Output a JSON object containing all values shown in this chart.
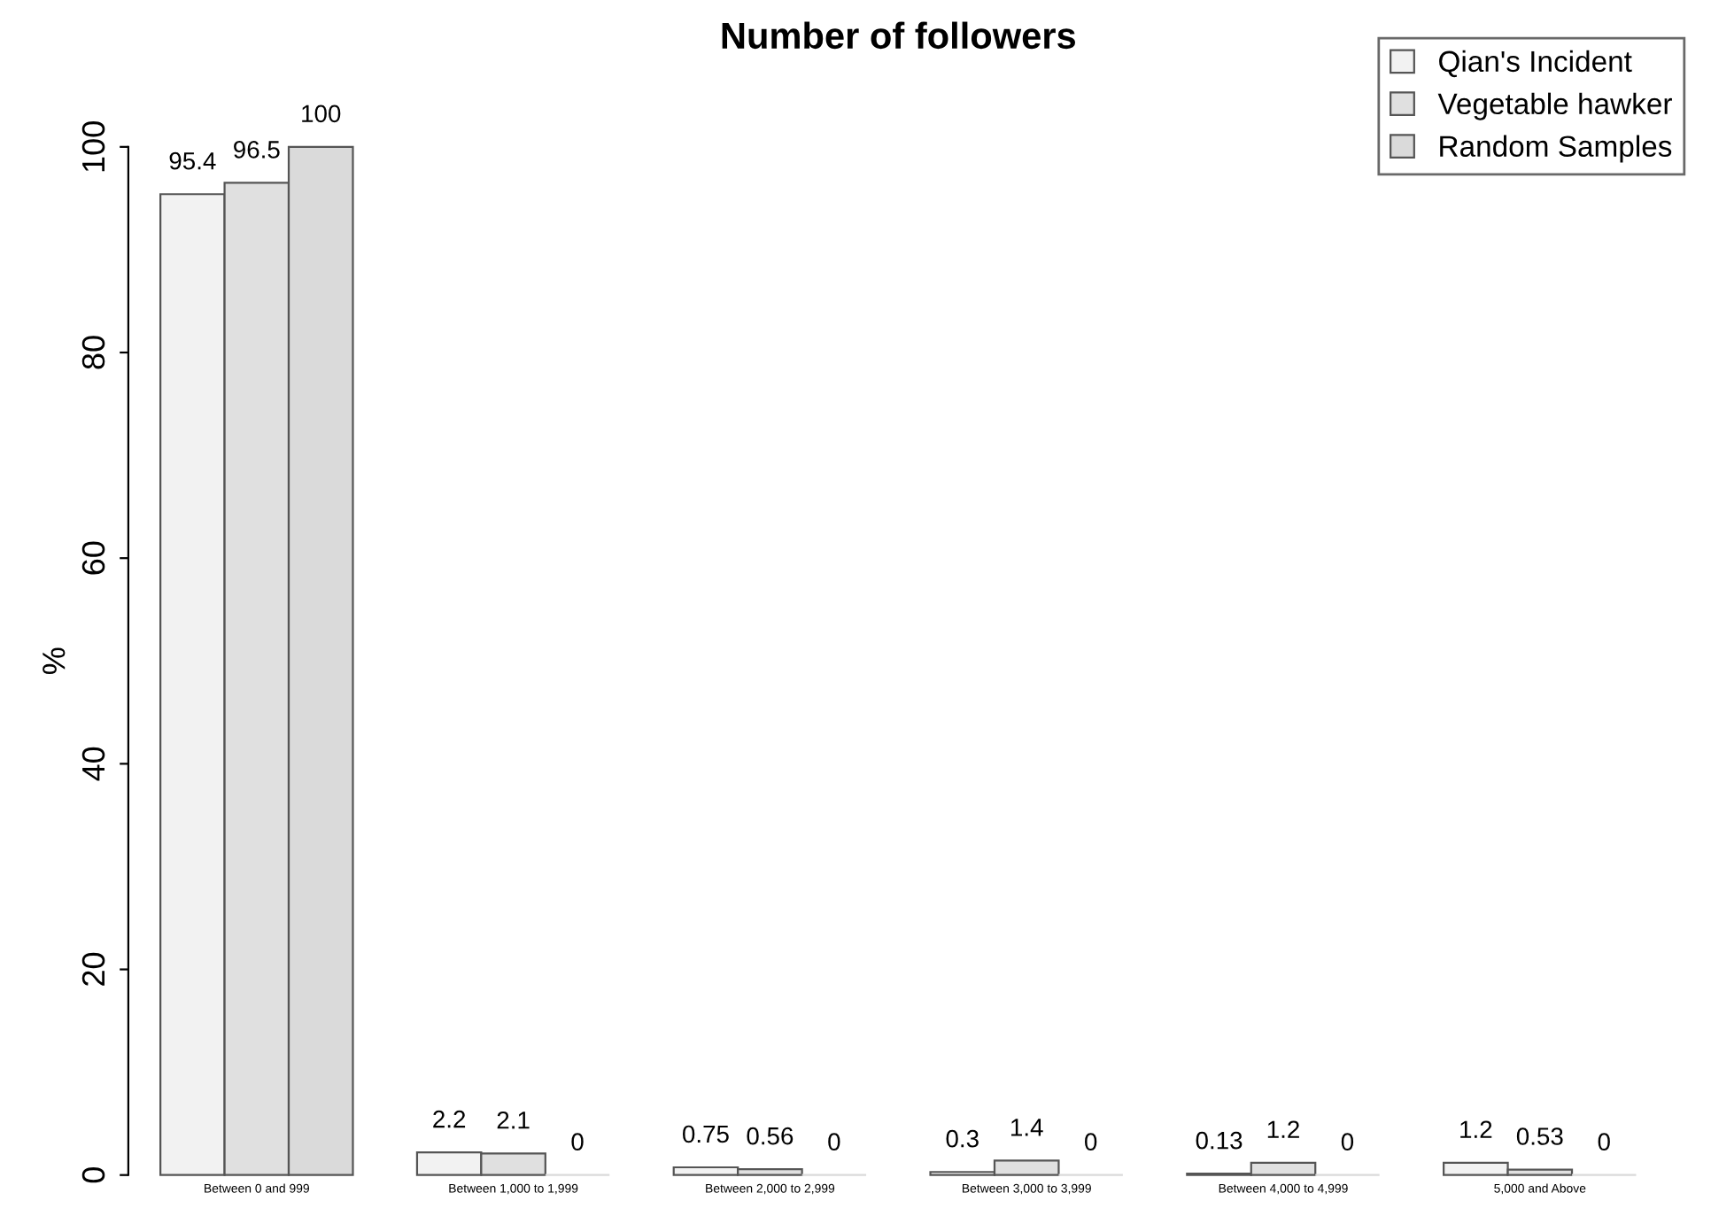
{
  "chart_data": {
    "type": "bar",
    "title": "Number of followers",
    "ylabel": "%",
    "categories": [
      "Between 0 and 999",
      "Between 1,000 to 1,999",
      "Between 2,000 to 2,999",
      "Between 3,000 to 3,999",
      "Between 4,000 to 4,999",
      "5,000 and Above"
    ],
    "series": [
      {
        "name": "Qian's Incident",
        "color": "#f2f2f2",
        "values": [
          95.4,
          2.2,
          0.75,
          0.3,
          0.13,
          1.2
        ]
      },
      {
        "name": "Vegetable hawker",
        "color": "#e0e0e0",
        "values": [
          96.5,
          2.1,
          0.56,
          1.4,
          1.2,
          0.53
        ]
      },
      {
        "name": "Random Samples",
        "color": "#dadada",
        "values": [
          100,
          0,
          0,
          0,
          0,
          0
        ]
      }
    ],
    "ylim": [
      0,
      100
    ],
    "yticks": [
      0,
      20,
      40,
      60,
      80,
      100
    ],
    "data_labels": true,
    "grid": false,
    "legend": "top right"
  }
}
